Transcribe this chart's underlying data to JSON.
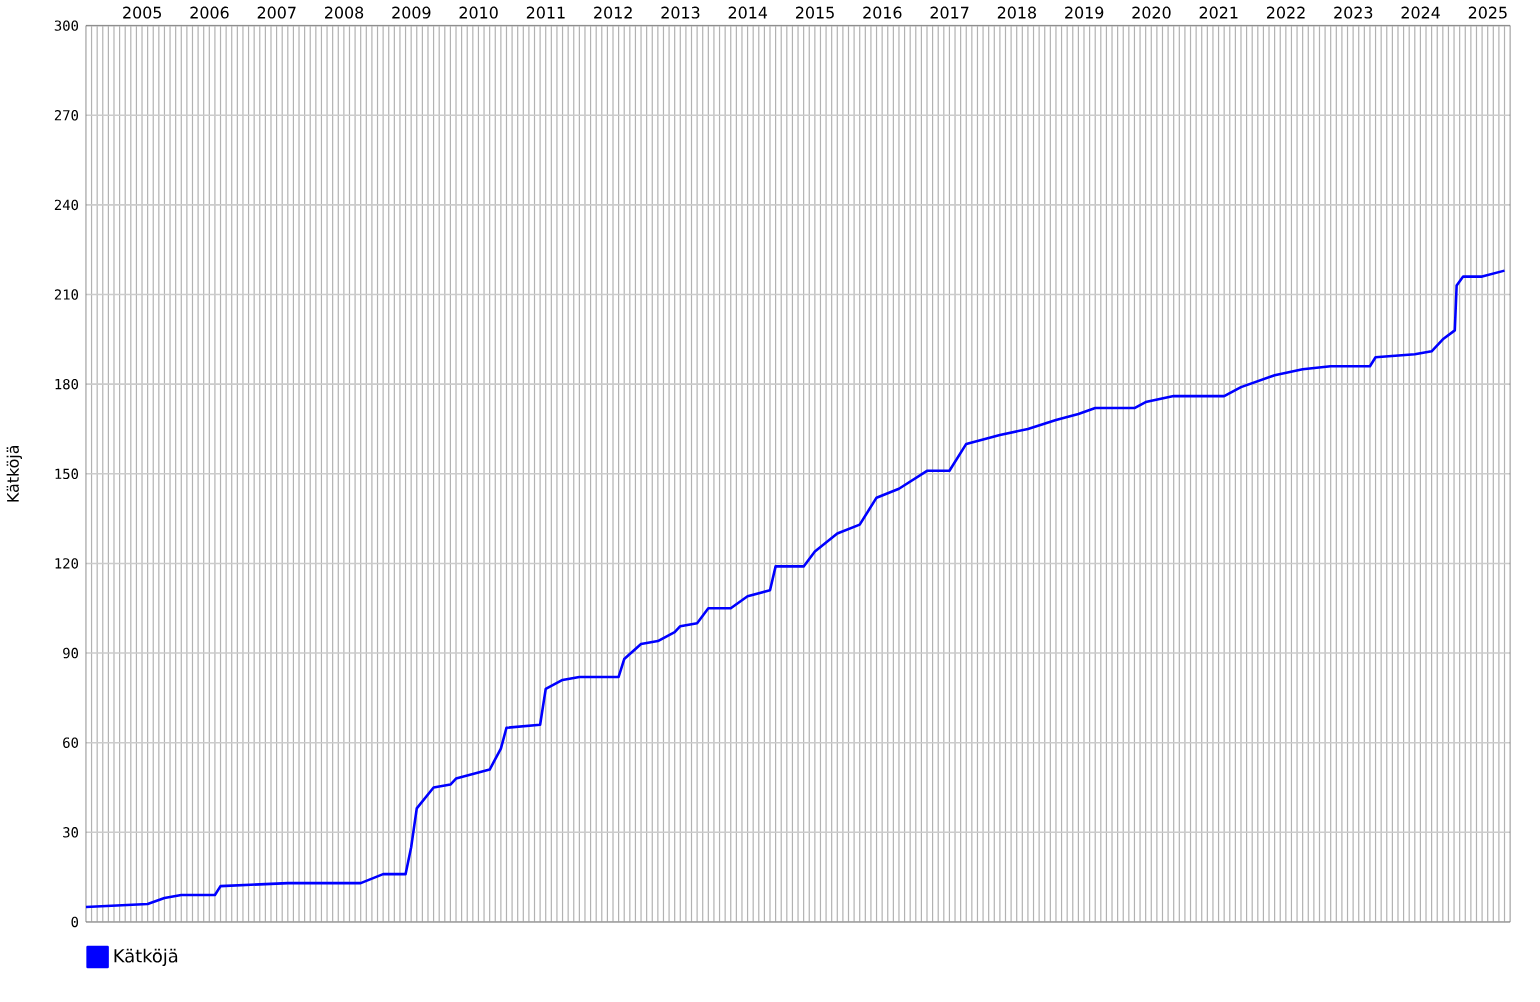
{
  "chart_data": {
    "type": "line",
    "ylabel": "Kätköjä",
    "x": [
      "2004-09",
      "2005-08",
      "2005-11",
      "2006-02",
      "2006-08",
      "2006-09",
      "2007-09",
      "2008-10",
      "2009-02",
      "2009-06",
      "2009-07",
      "2009-08",
      "2009-11",
      "2010-02",
      "2010-03",
      "2010-09",
      "2010-11",
      "2010-12",
      "2011-06",
      "2011-07",
      "2011-10",
      "2012-01",
      "2012-08",
      "2012-09",
      "2012-12",
      "2013-03",
      "2013-06",
      "2013-07",
      "2013-10",
      "2013-12",
      "2014-04",
      "2014-07",
      "2014-11",
      "2014-12",
      "2015-05",
      "2015-07",
      "2015-11",
      "2016-03",
      "2016-06",
      "2016-10",
      "2017-03",
      "2017-07",
      "2017-10",
      "2018-04",
      "2018-09",
      "2019-02",
      "2019-06",
      "2019-09",
      "2020-04",
      "2020-06",
      "2020-11",
      "2021-08",
      "2021-11",
      "2022-05",
      "2022-10",
      "2023-03",
      "2023-10",
      "2023-11",
      "2024-06",
      "2024-09",
      "2024-11",
      "2025-01-05",
      "2025-01-15",
      "2025-02-20",
      "2025-06",
      "2025-10"
    ],
    "series": [
      {
        "name": "Kätköjä",
        "color": "#0000ff",
        "values": [
          5,
          6,
          8,
          9,
          9,
          12,
          13,
          13,
          16,
          16,
          25,
          38,
          45,
          46,
          48,
          51,
          58,
          65,
          66,
          78,
          81,
          82,
          82,
          88,
          93,
          94,
          97,
          99,
          100,
          105,
          105,
          109,
          111,
          119,
          119,
          124,
          130,
          133,
          142,
          145,
          151,
          151,
          160,
          163,
          165,
          168,
          170,
          172,
          172,
          174,
          176,
          176,
          179,
          183,
          185,
          186,
          186,
          189,
          190,
          191,
          195,
          198,
          213,
          216,
          216,
          218
        ]
      }
    ],
    "xlim": [
      "2004-09-01",
      "2025-11-01"
    ],
    "xticks": [
      {
        "value": "2005-07-02",
        "label": "2005"
      },
      {
        "value": "2006-07-02",
        "label": "2006"
      },
      {
        "value": "2007-07-02",
        "label": "2007"
      },
      {
        "value": "2008-07-02",
        "label": "2008"
      },
      {
        "value": "2009-07-02",
        "label": "2009"
      },
      {
        "value": "2010-07-02",
        "label": "2010"
      },
      {
        "value": "2011-07-02",
        "label": "2011"
      },
      {
        "value": "2012-07-02",
        "label": "2012"
      },
      {
        "value": "2013-07-02",
        "label": "2013"
      },
      {
        "value": "2014-07-02",
        "label": "2014"
      },
      {
        "value": "2015-07-02",
        "label": "2015"
      },
      {
        "value": "2016-07-02",
        "label": "2016"
      },
      {
        "value": "2017-07-02",
        "label": "2017"
      },
      {
        "value": "2018-07-02",
        "label": "2018"
      },
      {
        "value": "2019-07-02",
        "label": "2019"
      },
      {
        "value": "2020-07-02",
        "label": "2020"
      },
      {
        "value": "2021-07-02",
        "label": "2021"
      },
      {
        "value": "2022-07-02",
        "label": "2022"
      },
      {
        "value": "2023-07-02",
        "label": "2023"
      },
      {
        "value": "2024-07-02",
        "label": "2024"
      },
      {
        "value": "2025-07-02",
        "label": "2025"
      }
    ],
    "ylim": [
      0,
      300
    ],
    "yticks": [
      0,
      30,
      60,
      90,
      120,
      150,
      180,
      210,
      240,
      270,
      300
    ],
    "grid": true,
    "legend": "bottom left",
    "marker": "none",
    "line_style": "solid"
  }
}
